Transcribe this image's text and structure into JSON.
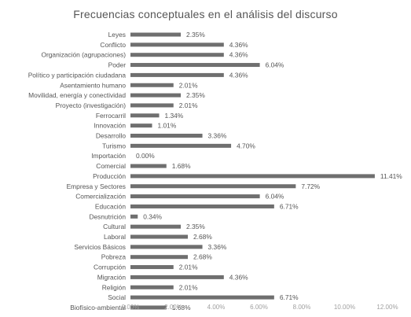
{
  "chart_data": {
    "type": "bar",
    "orientation": "horizontal",
    "title": "Frecuencias conceptuales en el análisis del discurso",
    "xlabel": "",
    "ylabel": "",
    "xlim": [
      0,
      12
    ],
    "x_ticks": [
      "0.00%",
      "2.00%",
      "4.00%",
      "6.00%",
      "8.00%",
      "10.00%",
      "12.00%"
    ],
    "grid": false,
    "legend": "none",
    "bar_color": "#6f6f6f",
    "categories": [
      "Leyes",
      "Conflicto",
      "Organización (agrupaciones)",
      "Poder",
      "Político y participación ciudadana",
      "Asentamiento humano",
      "Movilidad, energía y conectividad",
      "Proyecto (investigación)",
      "Ferrocarril",
      "Innovación",
      "Desarrollo",
      "Turismo",
      "Importación",
      "Comercial",
      "Producción",
      "Empresa y Sectores",
      "Comercialización",
      "Educación",
      "Desnutrición",
      "Cultural",
      "Laboral",
      "Servicios Básicos",
      "Pobreza",
      "Corrupción",
      "Migración",
      "Religión",
      "Social",
      "Biofísico-ambiental"
    ],
    "values": [
      2.35,
      4.36,
      4.36,
      6.04,
      4.36,
      2.01,
      2.35,
      2.01,
      1.34,
      1.01,
      3.36,
      4.7,
      0.0,
      1.68,
      11.41,
      7.72,
      6.04,
      6.71,
      0.34,
      2.35,
      2.68,
      3.36,
      2.68,
      2.01,
      4.36,
      2.01,
      6.71,
      1.68
    ],
    "data_labels": [
      "2.35%",
      "4.36%",
      "4.36%",
      "6.04%",
      "4.36%",
      "2.01%",
      "2.35%",
      "2.01%",
      "1.34%",
      "1.01%",
      "3.36%",
      "4.70%",
      "0.00%",
      "1.68%",
      "11.41%",
      "7.72%",
      "6.04%",
      "6.71%",
      "0.34%",
      "2.35%",
      "2.68%",
      "3.36%",
      "2.68%",
      "2.01%",
      "4.36%",
      "2.01%",
      "6.71%",
      "1.68%"
    ]
  }
}
